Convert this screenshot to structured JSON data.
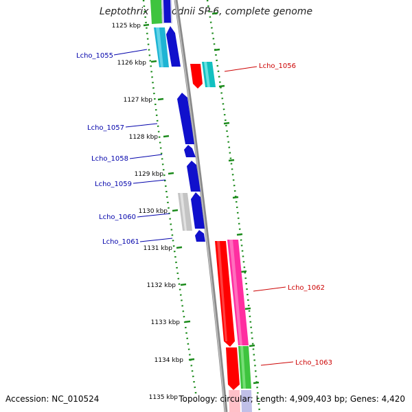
{
  "title": "Leptothrix cholodnii SP-6, complete genome",
  "accession_text": "Accession: NC_010524",
  "summary_text": "Topology: circular; Length: 4,909,403 bp; Genes: 4,420",
  "colors": {
    "backbone": "#8a8a8a",
    "ruler_dots": "#1a8a1a",
    "left_label": "#0000aa",
    "right_label": "#cc0000"
  },
  "kbp_ticks": [
    "1125 kbp",
    "1126 kbp",
    "1127 kbp",
    "1128 kbp",
    "1129 kbp",
    "1130 kbp",
    "1131 kbp",
    "1132 kbp",
    "1133 kbp",
    "1134 kbp",
    "1135 kbp"
  ],
  "gene_labels_left": [
    "Lcho_1055",
    "Lcho_1057",
    "Lcho_1058",
    "Lcho_1059",
    "Lcho_1060",
    "Lcho_1061"
  ],
  "gene_labels_right": [
    "Lcho_1056",
    "Lcho_1062",
    "Lcho_1063"
  ]
}
